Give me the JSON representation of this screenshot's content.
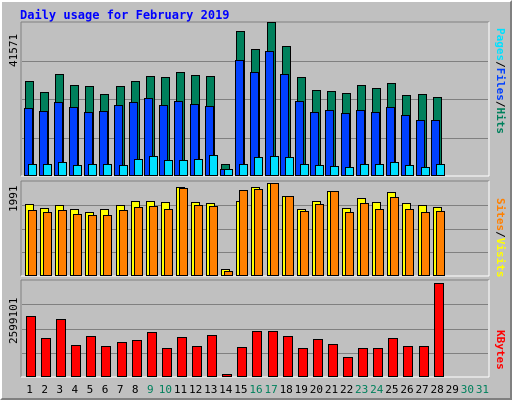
{
  "title": "Daily usage for February 2019",
  "colors": {
    "hits": "#00805c",
    "files": "#0040ff",
    "pages": "#00e0ff",
    "visits": "#ffff00",
    "sites": "#ff8000",
    "kbytes": "#ff0000",
    "weekend": "#00805c",
    "weekday": "#000000",
    "background": "#c0c0c0"
  },
  "chart_data": [
    {
      "type": "bar",
      "panel": "hits-files-pages",
      "max_label": "41571",
      "ylim": [
        0,
        41571
      ],
      "legend": [
        "Pages",
        "/",
        "Files",
        "/",
        "Hits"
      ],
      "categories": [
        "1",
        "2",
        "3",
        "4",
        "5",
        "6",
        "7",
        "8",
        "9",
        "10",
        "11",
        "12",
        "13",
        "14",
        "15",
        "16",
        "17",
        "18",
        "19",
        "20",
        "21",
        "22",
        "23",
        "24",
        "25",
        "26",
        "27",
        "28",
        "29",
        "30",
        "31"
      ],
      "series": [
        {
          "name": "Hits",
          "values": [
            26000,
            23000,
            27800,
            25000,
            24500,
            22500,
            24700,
            25900,
            27400,
            27100,
            28400,
            27700,
            27300,
            3200,
            39600,
            34600,
            42000,
            35500,
            27000,
            23400,
            23300,
            22600,
            24800,
            24100,
            25300,
            22100,
            22300,
            21500,
            null,
            null,
            null
          ]
        },
        {
          "name": "Files",
          "values": [
            18500,
            17700,
            20200,
            18800,
            17600,
            17700,
            19400,
            20200,
            21200,
            19500,
            20600,
            19600,
            19200,
            1800,
            31800,
            28500,
            34200,
            27900,
            20400,
            17600,
            18100,
            17300,
            18000,
            17600,
            19000,
            16700,
            15400,
            15400,
            null,
            null,
            null
          ]
        },
        {
          "name": "Pages",
          "values": [
            3200,
            3300,
            3800,
            3100,
            3200,
            3200,
            3100,
            4600,
            5400,
            4300,
            4500,
            4600,
            5700,
            2000,
            3200,
            5300,
            5400,
            5300,
            3400,
            3000,
            2700,
            2500,
            3400,
            3300,
            3800,
            3000,
            2500,
            3400,
            null,
            null,
            null
          ]
        }
      ]
    },
    {
      "type": "bar",
      "panel": "visits-sites",
      "max_label": "1991",
      "ylim": [
        0,
        1991
      ],
      "legend": [
        "Sites",
        "/",
        "Visits"
      ],
      "categories": [
        "1",
        "2",
        "3",
        "4",
        "5",
        "6",
        "7",
        "8",
        "9",
        "10",
        "11",
        "12",
        "13",
        "14",
        "15",
        "16",
        "17",
        "18",
        "19",
        "20",
        "21",
        "22",
        "23",
        "24",
        "25",
        "26",
        "27",
        "28",
        "29",
        "30",
        "31"
      ],
      "series": [
        {
          "name": "Visits",
          "values": [
            1550,
            1460,
            1510,
            1430,
            1380,
            1440,
            1510,
            1600,
            1610,
            1580,
            1910,
            1590,
            1570,
            160,
            1610,
            1910,
            1990,
            1720,
            1440,
            1600,
            1830,
            1450,
            1660,
            1580,
            1800,
            1560,
            1510,
            1480,
            null,
            null,
            null
          ]
        },
        {
          "name": "Sites",
          "values": [
            1420,
            1360,
            1420,
            1330,
            1310,
            1310,
            1420,
            1470,
            1500,
            1440,
            1880,
            1510,
            1500,
            110,
            1850,
            1860,
            1990,
            1720,
            1400,
            1550,
            1830,
            1360,
            1560,
            1430,
            1700,
            1440,
            1370,
            1390,
            null,
            null,
            null
          ]
        }
      ]
    },
    {
      "type": "bar",
      "panel": "kbytes",
      "max_label": "2599101",
      "ylim": [
        0,
        2599101
      ],
      "legend": [
        "KBytes"
      ],
      "categories": [
        "1",
        "2",
        "3",
        "4",
        "5",
        "6",
        "7",
        "8",
        "9",
        "10",
        "11",
        "12",
        "13",
        "14",
        "15",
        "16",
        "17",
        "18",
        "19",
        "20",
        "21",
        "22",
        "23",
        "24",
        "25",
        "26",
        "27",
        "28",
        "29",
        "30",
        "31"
      ],
      "series": [
        {
          "name": "KBytes",
          "values": [
            1660000,
            1080000,
            1590000,
            880000,
            1120000,
            840000,
            960000,
            1020000,
            1240000,
            800000,
            1100000,
            840000,
            1160000,
            80000,
            820000,
            1260000,
            1260000,
            1120000,
            800000,
            1040000,
            900000,
            560000,
            780000,
            780000,
            1060000,
            850000,
            840000,
            2580000,
            null,
            null,
            null
          ]
        }
      ]
    }
  ],
  "weekend_days": [
    "9",
    "10",
    "16",
    "17",
    "23",
    "24",
    "30",
    "31"
  ]
}
